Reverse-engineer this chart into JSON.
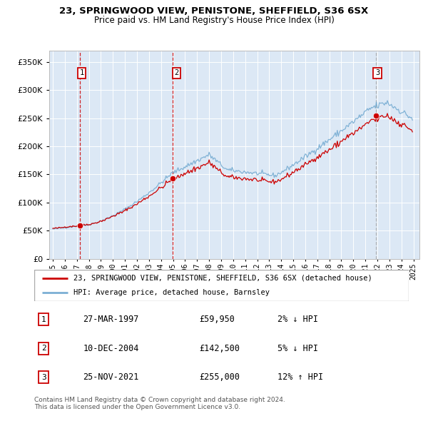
{
  "title1": "23, SPRINGWOOD VIEW, PENISTONE, SHEFFIELD, S36 6SX",
  "title2": "Price paid vs. HM Land Registry's House Price Index (HPI)",
  "sale_prices": [
    59950,
    142500,
    255000
  ],
  "sale_labels": [
    "1",
    "2",
    "3"
  ],
  "legend_line1": "23, SPRINGWOOD VIEW, PENISTONE, SHEFFIELD, S36 6SX (detached house)",
  "legend_line2": "HPI: Average price, detached house, Barnsley",
  "table_rows": [
    [
      "1",
      "27-MAR-1997",
      "£59,950",
      "2% ↓ HPI"
    ],
    [
      "2",
      "10-DEC-2004",
      "£142,500",
      "5% ↓ HPI"
    ],
    [
      "3",
      "25-NOV-2021",
      "£255,000",
      "12% ↑ HPI"
    ]
  ],
  "footnote1": "Contains HM Land Registry data © Crown copyright and database right 2024.",
  "footnote2": "This data is licensed under the Open Government Licence v3.0.",
  "hpi_color": "#7bafd4",
  "sale_line_color": "#cc0000",
  "sale_point_color": "#cc0000",
  "vline_color_red": "#cc0000",
  "vline_color_gray": "#aaaaaa",
  "bg_color": "#dce8f5",
  "ylim": [
    0,
    370000
  ],
  "xlim_start": 1994.7,
  "xlim_end": 2025.5,
  "sale_year_decimals": [
    1997.23,
    2004.94,
    2021.9
  ]
}
